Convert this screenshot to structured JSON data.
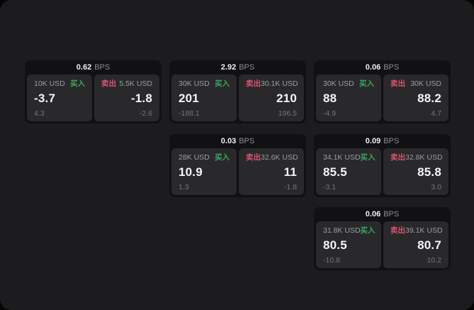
{
  "labels": {
    "bps_unit": "BPS",
    "buy": "买入",
    "sell": "卖出"
  },
  "colors": {
    "panel_background": "#1c1c1e",
    "card_background": "#111113",
    "tile_background": "#29292c",
    "buy_accent": "#3da560",
    "sell_accent": "#d6536e",
    "primary_text": "#f4f5f6",
    "muted_text": "#9a9da2",
    "dim_text": "#747578"
  },
  "cards": [
    {
      "row": 1,
      "col": 1,
      "bps": "0.62",
      "buy": {
        "amount": "10K USD",
        "value": "-3.7",
        "delta": "4.3"
      },
      "sell": {
        "amount": "5.5K USD",
        "value": "-1.8",
        "delta": "-2.6"
      }
    },
    {
      "row": 1,
      "col": 2,
      "bps": "2.92",
      "buy": {
        "amount": "30K USD",
        "value": "201",
        "delta": "-188.1"
      },
      "sell": {
        "amount": "30.1K USD",
        "value": "210",
        "delta": "196.5"
      }
    },
    {
      "row": 1,
      "col": 3,
      "bps": "0.06",
      "buy": {
        "amount": "30K USD",
        "value": "88",
        "delta": "-4.9"
      },
      "sell": {
        "amount": "30K USD",
        "value": "88.2",
        "delta": "4.7"
      }
    },
    {
      "row": 2,
      "col": 2,
      "bps": "0.03",
      "buy": {
        "amount": "28K USD",
        "value": "10.9",
        "delta": "1.3"
      },
      "sell": {
        "amount": "32.6K USD",
        "value": "11",
        "delta": "-1.8"
      }
    },
    {
      "row": 2,
      "col": 3,
      "bps": "0.09",
      "buy": {
        "amount": "34.1K USD",
        "value": "85.5",
        "delta": "-3.1"
      },
      "sell": {
        "amount": "32.8K USD",
        "value": "85.8",
        "delta": "3.0"
      }
    },
    {
      "row": 3,
      "col": 3,
      "bps": "0.06",
      "buy": {
        "amount": "31.8K USD",
        "value": "80.5",
        "delta": "-10.8"
      },
      "sell": {
        "amount": "39.1K USD",
        "value": "80.7",
        "delta": "10.2"
      }
    }
  ]
}
